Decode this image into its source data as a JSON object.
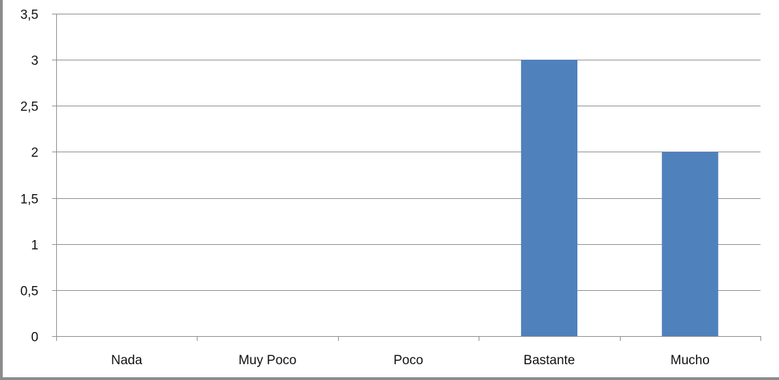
{
  "chart_data": {
    "type": "bar",
    "title": "",
    "xlabel": "",
    "ylabel": "",
    "categories": [
      "Nada",
      "Muy Poco",
      "Poco",
      "Bastante",
      "Mucho"
    ],
    "values": [
      0,
      0,
      0,
      3,
      2
    ],
    "ylim": [
      0,
      3.5
    ],
    "yticks": [
      "0",
      "0,5",
      "1",
      "1,5",
      "2",
      "2,5",
      "3",
      "3,5"
    ],
    "grid": true,
    "legend": "none",
    "bar_color": "#4f81bd",
    "gridline_color": "#8c8c8c"
  }
}
